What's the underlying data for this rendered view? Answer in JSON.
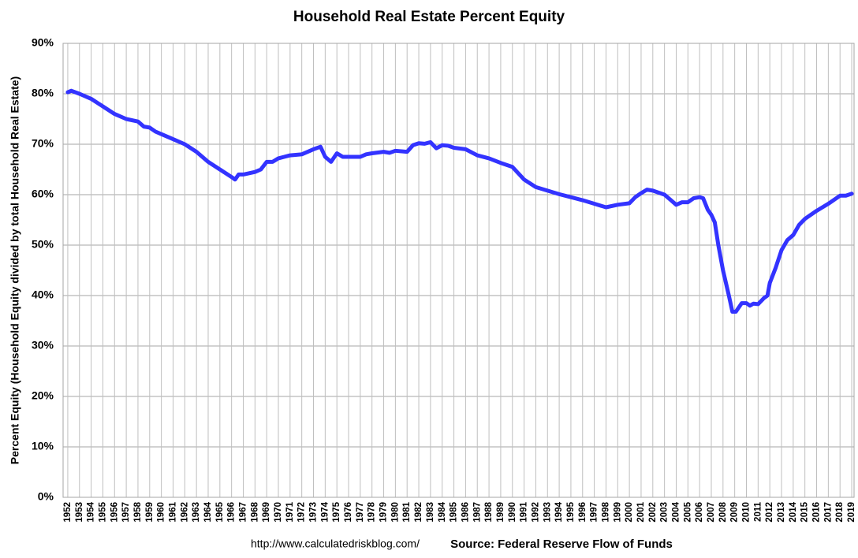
{
  "chart_data": {
    "type": "line",
    "title": "Household Real Estate Percent Equity",
    "y_label": "Percent Equity (Household Equity divided by total Household Real Estate)",
    "url": "http://www.calculatedriskblog.com/",
    "source": "Source: Federal Reserve Flow of Funds",
    "x": [
      1952.0,
      1952.3,
      1953,
      1954,
      1955,
      1956,
      1957,
      1958,
      1958.5,
      1959,
      1959.5,
      1960,
      1961,
      1962,
      1963,
      1964,
      1965,
      1966,
      1966.3,
      1966.6,
      1967,
      1968,
      1968.5,
      1969,
      1969.5,
      1970,
      1970.5,
      1971,
      1972,
      1973,
      1973.6,
      1974,
      1974.5,
      1975,
      1975.5,
      1976,
      1977,
      1977.5,
      1978,
      1979,
      1979.5,
      1980,
      1981,
      1981.5,
      1982,
      1982.5,
      1983,
      1983.5,
      1984,
      1984.5,
      1985,
      1986,
      1987,
      1988,
      1989,
      1990,
      1991,
      1992,
      1993,
      1994,
      1995,
      1996,
      1997,
      1998,
      1999,
      2000,
      2000.5,
      2001,
      2001.5,
      2002,
      2003,
      2003.5,
      2004,
      2004.5,
      2005,
      2005.5,
      2006,
      2006.3,
      2006.7,
      2007,
      2007.3,
      2007.6,
      2008,
      2008.5,
      2008.8,
      2009.1,
      2009.6,
      2010,
      2010.3,
      2010.6,
      2011,
      2011.5,
      2011.8,
      2012,
      2012.5,
      2013,
      2013.5,
      2014,
      2014.5,
      2015,
      2015.5,
      2016,
      2016.5,
      2017,
      2017.5,
      2018,
      2018.5,
      2019
    ],
    "series": [
      {
        "name": "Percent Equity",
        "color": "#3333ff",
        "values": [
          80.3,
          80.6,
          80,
          79,
          77.5,
          76,
          75,
          74.5,
          73.5,
          73.3,
          72.5,
          72,
          71,
          70,
          68.5,
          66.5,
          65,
          63.5,
          63,
          64,
          64,
          64.5,
          65,
          66.5,
          66.5,
          67.2,
          67.5,
          67.8,
          68,
          69,
          69.5,
          67.5,
          66.5,
          68.2,
          67.5,
          67.5,
          67.5,
          68,
          68.2,
          68.5,
          68.3,
          68.7,
          68.5,
          69.8,
          70.2,
          70.1,
          70.4,
          69.2,
          69.8,
          69.7,
          69.3,
          69,
          67.8,
          67.2,
          66.3,
          65.5,
          63,
          61.5,
          60.8,
          60.1,
          59.5,
          58.9,
          58.2,
          57.5,
          58,
          58.3,
          59.5,
          60.3,
          61,
          60.8,
          60,
          59,
          58,
          58.5,
          58.5,
          59.3,
          59.5,
          59.3,
          57,
          56,
          54.5,
          50,
          45,
          40,
          36.8,
          36.8,
          38.5,
          38.5,
          38,
          38.4,
          38.3,
          39.5,
          40,
          42.5,
          45.5,
          49,
          51,
          52,
          54,
          55.2,
          56,
          56.8,
          57.5,
          58.2,
          59,
          59.8,
          59.8,
          60.2
        ]
      }
    ],
    "xlim": [
      1951.6,
      2019.2
    ],
    "xticks": [
      1952,
      1953,
      1954,
      1955,
      1956,
      1957,
      1958,
      1959,
      1960,
      1961,
      1962,
      1963,
      1964,
      1965,
      1966,
      1967,
      1968,
      1969,
      1970,
      1971,
      1972,
      1973,
      1974,
      1975,
      1976,
      1977,
      1978,
      1979,
      1980,
      1981,
      1982,
      1983,
      1984,
      1985,
      1986,
      1987,
      1988,
      1989,
      1990,
      1991,
      1992,
      1993,
      1994,
      1995,
      1996,
      1997,
      1998,
      1999,
      2000,
      2001,
      2002,
      2003,
      2004,
      2005,
      2006,
      2007,
      2008,
      2009,
      2010,
      2011,
      2012,
      2013,
      2014,
      2015,
      2016,
      2017,
      2018,
      2019
    ],
    "ylim": [
      0,
      90
    ],
    "yticks": [
      {
        "value": 0,
        "label": "0%"
      },
      {
        "value": 10,
        "label": "10%"
      },
      {
        "value": 20,
        "label": "20%"
      },
      {
        "value": 30,
        "label": "30%"
      },
      {
        "value": 40,
        "label": "40%"
      },
      {
        "value": 50,
        "label": "50%"
      },
      {
        "value": 60,
        "label": "60%"
      },
      {
        "value": 70,
        "label": "70%"
      },
      {
        "value": 80,
        "label": "80%"
      },
      {
        "value": 90,
        "label": "90%"
      }
    ],
    "grid": true
  }
}
